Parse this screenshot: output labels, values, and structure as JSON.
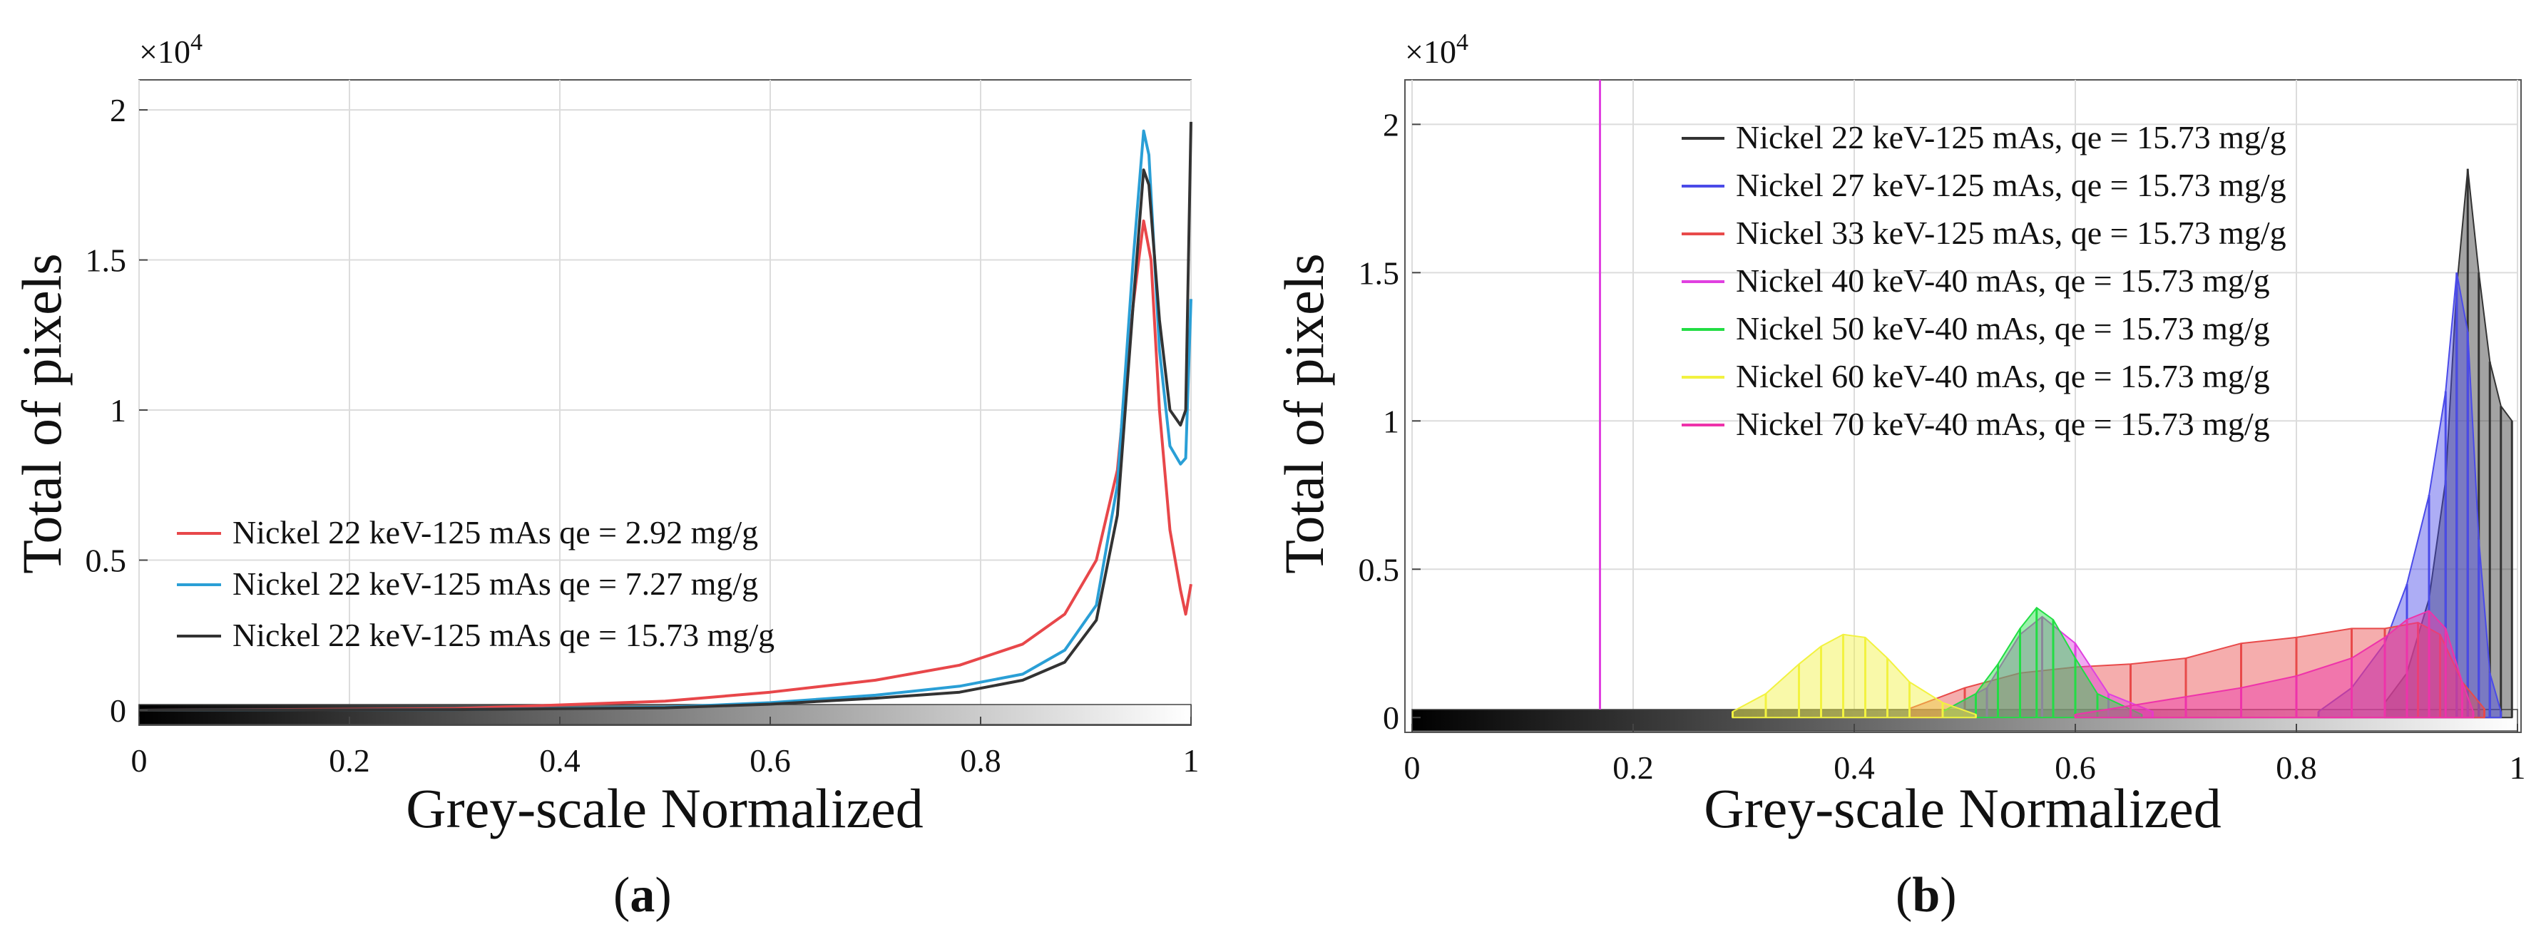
{
  "chart_data": [
    {
      "id": "a",
      "type": "line",
      "caption_label": "a",
      "xlabel": "Grey-scale Normalized",
      "ylabel": "Total of pixels",
      "y_multiplier_base": "×10",
      "y_multiplier_exp": "4",
      "xlim": [
        0,
        1
      ],
      "ylim": [
        -0.05,
        2.1
      ],
      "y_scale": 10000,
      "x_ticks": [
        0,
        0.2,
        0.4,
        0.6,
        0.8,
        1
      ],
      "x_tick_labels": [
        "0",
        "0.2",
        "0.4",
        "0.6",
        "0.8",
        "1"
      ],
      "y_ticks": [
        0,
        0.5,
        1,
        1.5,
        2
      ],
      "y_tick_labels": [
        "0",
        "0.5",
        "1",
        "1.5",
        "2"
      ],
      "grid": true,
      "colorbar": "greyscale",
      "legend_position": "lower-left",
      "series": [
        {
          "name": "Nickel 22 keV-125 mAs qe = 2.92 mg/g",
          "color": "#e8474a",
          "x": [
            0,
            0.3,
            0.5,
            0.6,
            0.7,
            0.78,
            0.84,
            0.88,
            0.91,
            0.93,
            0.945,
            0.955,
            0.962,
            0.97,
            0.98,
            0.99,
            0.995,
            1.0
          ],
          "y": [
            0.0,
            0.005,
            0.03,
            0.06,
            0.1,
            0.15,
            0.22,
            0.32,
            0.5,
            0.8,
            1.35,
            1.63,
            1.5,
            1.0,
            0.6,
            0.4,
            0.32,
            0.42
          ]
        },
        {
          "name": "Nickel 22 keV-125 mAs qe = 7.27 mg/g",
          "color": "#2a9fd6",
          "x": [
            0,
            0.3,
            0.5,
            0.6,
            0.7,
            0.78,
            0.84,
            0.88,
            0.91,
            0.93,
            0.945,
            0.955,
            0.96,
            0.97,
            0.98,
            0.99,
            0.995,
            1.0
          ],
          "y": [
            0.0,
            0.002,
            0.01,
            0.025,
            0.05,
            0.08,
            0.12,
            0.2,
            0.35,
            0.75,
            1.5,
            1.93,
            1.85,
            1.2,
            0.88,
            0.82,
            0.84,
            1.37
          ]
        },
        {
          "name": "Nickel 22 keV-125 mAs qe = 15.73 mg/g",
          "color": "#333333",
          "x": [
            0,
            0.3,
            0.5,
            0.6,
            0.7,
            0.78,
            0.84,
            0.88,
            0.91,
            0.93,
            0.945,
            0.955,
            0.96,
            0.97,
            0.98,
            0.99,
            0.995,
            1.0
          ],
          "y": [
            0.0,
            0.002,
            0.008,
            0.02,
            0.04,
            0.06,
            0.1,
            0.16,
            0.3,
            0.65,
            1.35,
            1.8,
            1.75,
            1.3,
            1.0,
            0.95,
            1.0,
            1.96
          ]
        }
      ]
    },
    {
      "id": "b",
      "type": "bar",
      "caption_label": "b",
      "xlabel": "Grey-scale Normalized",
      "ylabel": "Total of pixels",
      "y_multiplier_base": "×10",
      "y_multiplier_exp": "4",
      "xlim": [
        0,
        1
      ],
      "ylim": [
        -0.05,
        2.15
      ],
      "y_scale": 10000,
      "x_ticks": [
        0,
        0.2,
        0.4,
        0.6,
        0.8,
        1
      ],
      "x_tick_labels": [
        "0",
        "0.2",
        "0.4",
        "0.6",
        "0.8",
        "1"
      ],
      "y_ticks": [
        0,
        0.5,
        1,
        1.5,
        2
      ],
      "y_tick_labels": [
        "0",
        "0.5",
        "1",
        "1.5",
        "2"
      ],
      "grid": true,
      "colorbar": "greyscale",
      "legend_position": "top-center",
      "series": [
        {
          "name": "Nickel 22 keV-125 mAs, qe = 15.73 mg/g",
          "color": "#333333",
          "x": [
            0.88,
            0.9,
            0.92,
            0.935,
            0.945,
            0.955,
            0.965,
            0.975,
            0.985,
            0.995
          ],
          "y": [
            0.05,
            0.15,
            0.4,
            0.8,
            1.45,
            1.85,
            1.5,
            1.2,
            1.05,
            1.0
          ]
        },
        {
          "name": "Nickel 27 keV-125 mAs, qe = 15.73 mg/g",
          "color": "#4a4ae8",
          "x": [
            0.82,
            0.85,
            0.88,
            0.9,
            0.92,
            0.935,
            0.945,
            0.955,
            0.965,
            0.975,
            0.985
          ],
          "y": [
            0.02,
            0.1,
            0.25,
            0.45,
            0.75,
            1.1,
            1.5,
            1.3,
            0.6,
            0.15,
            0.02
          ]
        },
        {
          "name": "Nickel 33 keV-125 mAs, qe = 15.73 mg/g",
          "color": "#e84a4a",
          "x": [
            0.45,
            0.5,
            0.55,
            0.6,
            0.65,
            0.7,
            0.75,
            0.8,
            0.85,
            0.88,
            0.91,
            0.93,
            0.95,
            0.97
          ],
          "y": [
            0.03,
            0.1,
            0.15,
            0.17,
            0.18,
            0.2,
            0.25,
            0.27,
            0.3,
            0.3,
            0.32,
            0.28,
            0.12,
            0.03
          ]
        },
        {
          "name": "Nickel 40 keV-40 mAs, qe = 15.73 mg/g",
          "color": "#e040e0",
          "x": [
            0.48,
            0.52,
            0.55,
            0.57,
            0.6,
            0.63,
            0.67
          ],
          "y": [
            0.02,
            0.1,
            0.28,
            0.34,
            0.25,
            0.08,
            0.02
          ]
        },
        {
          "name": "Nickel 50 keV-40 mAs, qe = 15.73 mg/g",
          "color": "#22dd44",
          "x": [
            0.48,
            0.51,
            0.53,
            0.55,
            0.565,
            0.58,
            0.6,
            0.62,
            0.66
          ],
          "y": [
            0.02,
            0.08,
            0.18,
            0.3,
            0.37,
            0.33,
            0.2,
            0.08,
            0.01
          ]
        },
        {
          "name": "Nickel 60 keV-40 mAs, qe = 15.73 mg/g",
          "color": "#f2f240",
          "x": [
            0.29,
            0.32,
            0.35,
            0.37,
            0.39,
            0.41,
            0.43,
            0.45,
            0.48,
            0.51
          ],
          "y": [
            0.02,
            0.08,
            0.18,
            0.24,
            0.28,
            0.27,
            0.2,
            0.12,
            0.05,
            0.01
          ]
        },
        {
          "name": "Nickel 70 keV-40 mAs, qe = 15.73 mg/g",
          "color": "#ee33aa",
          "x": [
            0.6,
            0.65,
            0.7,
            0.75,
            0.8,
            0.85,
            0.88,
            0.9,
            0.92,
            0.935,
            0.95,
            0.96
          ],
          "y": [
            0.01,
            0.04,
            0.07,
            0.1,
            0.14,
            0.2,
            0.27,
            0.33,
            0.36,
            0.3,
            0.12,
            0.02
          ]
        }
      ],
      "vertical_line": {
        "x": 0.17,
        "color": "#e040e0"
      }
    }
  ]
}
